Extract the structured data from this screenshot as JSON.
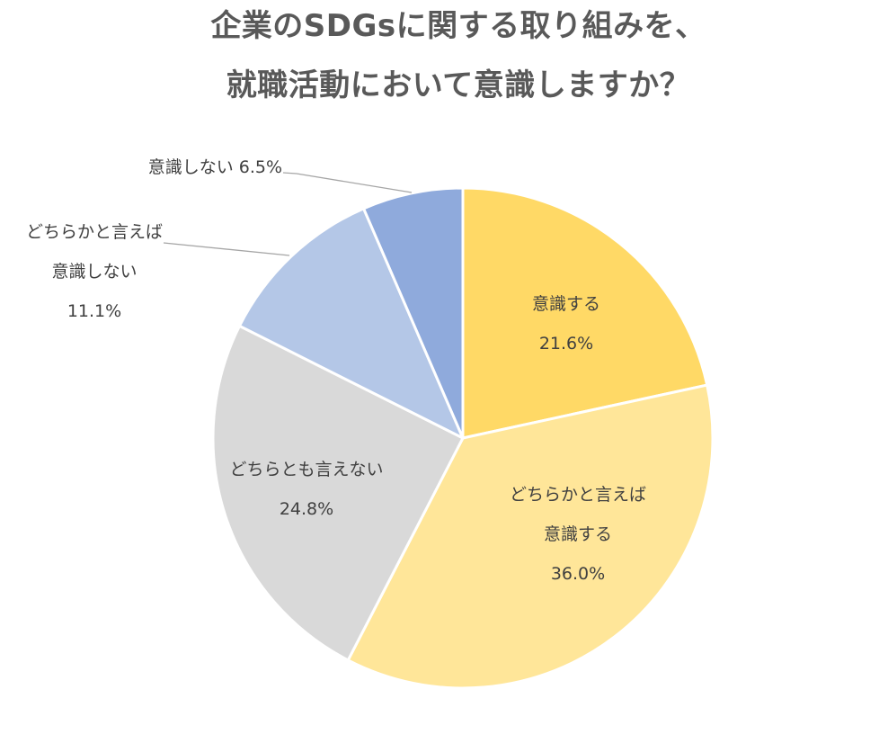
{
  "title": {
    "line1": "企業のSDGsに関する取り組みを、",
    "line2": "就職活動において意識しますか？"
  },
  "labels": {
    "ishiki_suru": {
      "name": "意識する",
      "value": "21.6%"
    },
    "dochira_suru": {
      "name1": "どちらかと言えば",
      "name2": "意識する",
      "value": "36.0%"
    },
    "dochiramo": {
      "name": "どちらとも言えない",
      "value": "24.8%"
    },
    "dochira_shinai": {
      "name1": "どちらかと言えば",
      "name2": "意識しない",
      "value": "11.1%"
    },
    "shinai": {
      "name": "意識しない",
      "value": "6.5%",
      "combined": "意識しない 6.5%"
    }
  },
  "chart_data": {
    "type": "pie",
    "title": "企業のSDGsに関する取り組みを、就職活動において意識しますか？",
    "start_angle": "12 o'clock, clockwise",
    "categories": [
      "意識する",
      "どちらかと言えば意識する",
      "どちらとも言えない",
      "どちらかと言えば意識しない",
      "意識しない"
    ],
    "values": [
      21.6,
      36.0,
      24.8,
      11.1,
      6.5
    ],
    "unit": "%",
    "colors": [
      "#FFD966",
      "#FFE699",
      "#D9D9D9",
      "#B4C7E7",
      "#8FAADC"
    ],
    "legend": "none (data labels with category name and percentage)"
  }
}
